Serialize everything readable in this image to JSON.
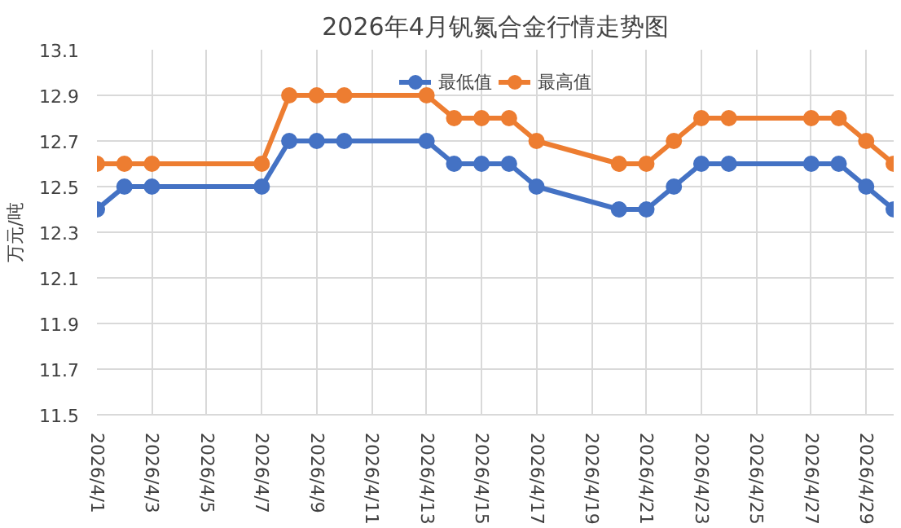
{
  "chart_data": {
    "type": "line",
    "title": "2026年4月钒氮合金行情走势图",
    "ylabel": "万元/吨",
    "x": [
      "2026-04-01",
      "2026-04-02",
      "2026-04-03",
      "2026-04-07",
      "2026-04-08",
      "2026-04-09",
      "2026-04-10",
      "2026-04-13",
      "2026-04-14",
      "2026-04-15",
      "2026-04-16",
      "2026-04-17",
      "2026-04-20",
      "2026-04-21",
      "2026-04-22",
      "2026-04-23",
      "2026-04-24",
      "2026-04-27",
      "2026-04-28",
      "2026-04-29",
      "2026-04-30"
    ],
    "series": [
      {
        "name": "最低值",
        "color": "#4472c4",
        "values": [
          12.4,
          12.5,
          12.5,
          12.5,
          12.7,
          12.7,
          12.7,
          12.7,
          12.6,
          12.6,
          12.6,
          12.5,
          12.4,
          12.4,
          12.5,
          12.6,
          12.6,
          12.6,
          12.6,
          12.5,
          12.4
        ]
      },
      {
        "name": "最高值",
        "color": "#ed7d31",
        "values": [
          12.6,
          12.6,
          12.6,
          12.6,
          12.9,
          12.9,
          12.9,
          12.9,
          12.8,
          12.8,
          12.8,
          12.7,
          12.6,
          12.6,
          12.7,
          12.8,
          12.8,
          12.8,
          12.8,
          12.7,
          12.6
        ]
      }
    ],
    "xlim": [
      "2026-04-01",
      "2026-04-30"
    ],
    "xticks": [
      {
        "value": "2026-04-01",
        "label": "2026/4/1"
      },
      {
        "value": "2026-04-03",
        "label": "2026/4/3"
      },
      {
        "value": "2026-04-05",
        "label": "2026/4/5"
      },
      {
        "value": "2026-04-07",
        "label": "2026/4/7"
      },
      {
        "value": "2026-04-09",
        "label": "2026/4/9"
      },
      {
        "value": "2026-04-11",
        "label": "2026/4/11"
      },
      {
        "value": "2026-04-13",
        "label": "2026/4/13"
      },
      {
        "value": "2026-04-15",
        "label": "2026/4/15"
      },
      {
        "value": "2026-04-17",
        "label": "2026/4/17"
      },
      {
        "value": "2026-04-19",
        "label": "2026/4/19"
      },
      {
        "value": "2026-04-21",
        "label": "2026/4/21"
      },
      {
        "value": "2026-04-23",
        "label": "2026/4/23"
      },
      {
        "value": "2026-04-25",
        "label": "2026/4/25"
      },
      {
        "value": "2026-04-27",
        "label": "2026/4/27"
      },
      {
        "value": "2026-04-29",
        "label": "2026/4/29"
      }
    ],
    "ylim": [
      11.5,
      13.1
    ],
    "yticks": [
      11.5,
      11.7,
      11.9,
      12.1,
      12.3,
      12.5,
      12.7,
      12.9,
      13.1
    ],
    "grid": true,
    "legend": "top",
    "marker": "circle",
    "line_style": "solid"
  }
}
